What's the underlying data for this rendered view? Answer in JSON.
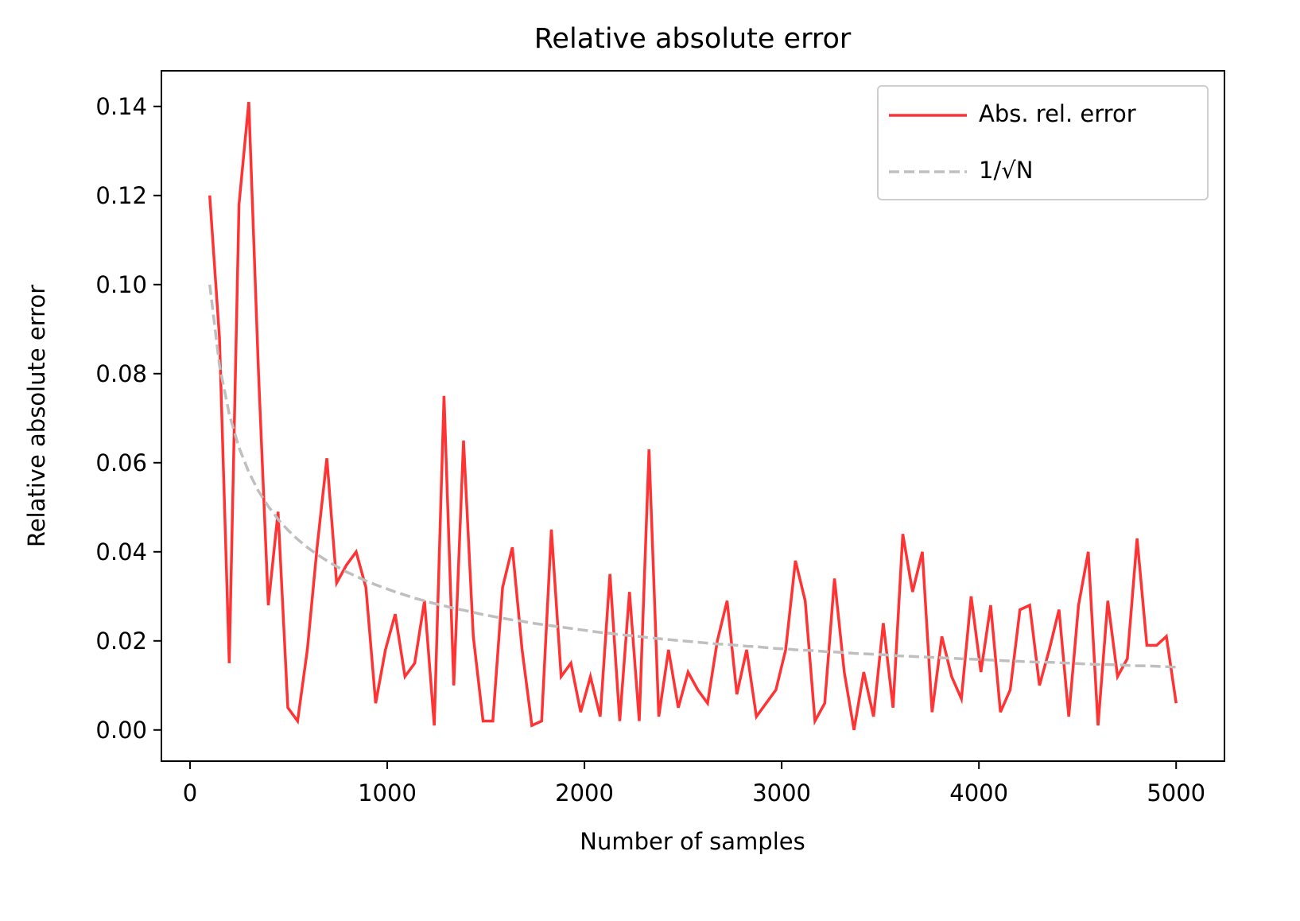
{
  "chart_data": {
    "type": "line",
    "title": "Relative absolute error",
    "x_label": "Number of samples",
    "y_label": "Relative absolute error",
    "x": [
      100,
      149.5,
      199,
      248.5,
      298,
      347.5,
      397,
      446.5,
      496,
      545.5,
      594.9,
      644.4,
      693.9,
      743.4,
      792.9,
      842.4,
      891.9,
      941.4,
      990.9,
      1040.4,
      1089.9,
      1139.4,
      1188.9,
      1238.4,
      1287.9,
      1337.4,
      1386.9,
      1436.4,
      1485.9,
      1535.4,
      1584.8,
      1634.3,
      1683.8,
      1733.3,
      1782.8,
      1832.3,
      1881.8,
      1931.3,
      1980.8,
      2030.3,
      2079.8,
      2129.3,
      2178.8,
      2228.3,
      2277.8,
      2327.3,
      2376.8,
      2426.3,
      2475.8,
      2525.3,
      2574.7,
      2624.2,
      2673.7,
      2723.2,
      2772.7,
      2822.2,
      2871.7,
      2921.2,
      2970.7,
      3020.2,
      3069.7,
      3119.2,
      3168.7,
      3218.2,
      3267.7,
      3317.2,
      3366.7,
      3416.2,
      3465.7,
      3515.2,
      3564.6,
      3614.1,
      3663.6,
      3713.1,
      3762.6,
      3812.1,
      3861.6,
      3911.1,
      3960.6,
      4010.1,
      4059.6,
      4109.1,
      4158.6,
      4208.1,
      4257.6,
      4307.1,
      4356.6,
      4406.1,
      4455.6,
      4505.1,
      4554.5,
      4604,
      4653.5,
      4703,
      4752.5,
      4802,
      4851.5,
      4901,
      4950.5,
      5000
    ],
    "series": [
      {
        "name": "Abs. rel. error",
        "color": "#ff3333",
        "dash": false,
        "values": [
          0.12,
          0.088,
          0.015,
          0.118,
          0.141,
          0.08,
          0.028,
          0.049,
          0.005,
          0.002,
          0.018,
          0.041,
          0.061,
          0.033,
          0.037,
          0.04,
          0.032,
          0.006,
          0.018,
          0.026,
          0.012,
          0.015,
          0.029,
          0.001,
          0.075,
          0.01,
          0.065,
          0.021,
          0.002,
          0.002,
          0.032,
          0.041,
          0.018,
          0.001,
          0.002,
          0.045,
          0.012,
          0.015,
          0.004,
          0.012,
          0.003,
          0.035,
          0.002,
          0.031,
          0.002,
          0.063,
          0.003,
          0.018,
          0.005,
          0.013,
          0.009,
          0.006,
          0.02,
          0.029,
          0.008,
          0.018,
          0.003,
          0.006,
          0.009,
          0.018,
          0.038,
          0.029,
          0.002,
          0.006,
          0.034,
          0.013,
          0.0,
          0.013,
          0.003,
          0.024,
          0.005,
          0.044,
          0.031,
          0.04,
          0.004,
          0.021,
          0.012,
          0.007,
          0.03,
          0.013,
          0.028,
          0.004,
          0.009,
          0.027,
          0.028,
          0.01,
          0.018,
          0.027,
          0.003,
          0.028,
          0.04,
          0.001,
          0.029,
          0.012,
          0.016,
          0.043,
          0.019,
          0.019,
          0.021,
          0.006
        ]
      },
      {
        "name": "1/√N",
        "color": "#bfbfbf",
        "dash": true,
        "values": [
          0.1,
          0.0818,
          0.0709,
          0.0634,
          0.0579,
          0.0536,
          0.0502,
          0.0473,
          0.0449,
          0.0428,
          0.041,
          0.0394,
          0.038,
          0.0367,
          0.0355,
          0.0345,
          0.0335,
          0.0326,
          0.0318,
          0.031,
          0.0303,
          0.0296,
          0.029,
          0.0284,
          0.0279,
          0.0273,
          0.0269,
          0.0264,
          0.0259,
          0.0255,
          0.0251,
          0.0247,
          0.0244,
          0.024,
          0.0237,
          0.0234,
          0.0231,
          0.0228,
          0.0225,
          0.0222,
          0.0219,
          0.0217,
          0.0214,
          0.0212,
          0.021,
          0.0207,
          0.0205,
          0.0203,
          0.0201,
          0.0199,
          0.0197,
          0.0195,
          0.0193,
          0.0192,
          0.019,
          0.0188,
          0.0187,
          0.0185,
          0.0183,
          0.0182,
          0.018,
          0.0179,
          0.0178,
          0.0176,
          0.0175,
          0.0174,
          0.0172,
          0.0171,
          0.017,
          0.0169,
          0.0167,
          0.0166,
          0.0165,
          0.0164,
          0.0163,
          0.0162,
          0.0161,
          0.016,
          0.0159,
          0.0158,
          0.0157,
          0.0156,
          0.0155,
          0.0154,
          0.0153,
          0.0152,
          0.0152,
          0.0151,
          0.015,
          0.0149,
          0.0148,
          0.0147,
          0.0147,
          0.0146,
          0.0145,
          0.0144,
          0.0144,
          0.0143,
          0.0142,
          0.0141
        ]
      }
    ],
    "xlim": [
      -145,
      5245
    ],
    "ylim": [
      -0.007,
      0.148
    ],
    "xticks": [
      0,
      1000,
      2000,
      3000,
      4000,
      5000
    ],
    "yticks": [
      {
        "value": 0,
        "label": "0.00"
      },
      {
        "value": 0.02,
        "label": "0.02"
      },
      {
        "value": 0.04,
        "label": "0.04"
      },
      {
        "value": 0.06,
        "label": "0.06"
      },
      {
        "value": 0.08,
        "label": "0.08"
      },
      {
        "value": 0.1,
        "label": "0.10"
      },
      {
        "value": 0.12,
        "label": "0.12"
      },
      {
        "value": 0.14,
        "label": "0.14"
      }
    ],
    "grid": false,
    "legend": "upper right"
  }
}
